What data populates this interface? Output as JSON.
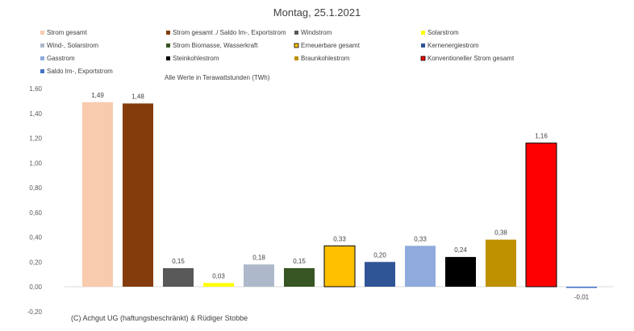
{
  "chart_data": {
    "type": "bar",
    "title": "Montag, 25.1.2021",
    "note": "Alle Werte in Terawattstunden (TWh)",
    "copyright": "(C) Achgut UG (haftungsbeschränkt) & Rüdiger Stobbe",
    "ylim": [
      -0.2,
      1.6
    ],
    "yticks": [
      "-0,20",
      "0,00",
      "0,20",
      "0,40",
      "0,60",
      "0,80",
      "1,00",
      "1,20",
      "1,40",
      "1,60"
    ],
    "ytick_values": [
      -0.2,
      0,
      0.2,
      0.4,
      0.6,
      0.8,
      1.0,
      1.2,
      1.4,
      1.6
    ],
    "grid": false,
    "legend_placement": "top",
    "series": [
      {
        "name": "Strom gesamt",
        "value": 1.49,
        "label": "1,49",
        "color": "#f8cbad",
        "border": "none"
      },
      {
        "name": "Strom gesamt ./ Saldo Im-, Exportstrom",
        "value": 1.48,
        "label": "1,48",
        "color": "#843c0c",
        "border": "none"
      },
      {
        "name": "Windstrom",
        "value": 0.15,
        "label": "0,15",
        "color": "#595959",
        "border": "none"
      },
      {
        "name": "Solarstrom",
        "value": 0.03,
        "label": "0,03",
        "color": "#ffff00",
        "border": "none"
      },
      {
        "name": "Wind-, Solarstrom",
        "value": 0.18,
        "label": "0,18",
        "color": "#adb9ca",
        "border": "none"
      },
      {
        "name": "Strom Biomasse, Wasserkraft",
        "value": 0.15,
        "label": "0,15",
        "color": "#375623",
        "border": "none"
      },
      {
        "name": "Erneuerbare gesamt",
        "value": 0.33,
        "label": "0,33",
        "color": "#ffc000",
        "border": "#000000"
      },
      {
        "name": "Kernenergiestrom",
        "value": 0.2,
        "label": "0,20",
        "color": "#2f5597",
        "border": "none"
      },
      {
        "name": "Gasstrom",
        "value": 0.33,
        "label": "0,33",
        "color": "#8faadc",
        "border": "none"
      },
      {
        "name": "Steinkohlestrom",
        "value": 0.24,
        "label": "0,24",
        "color": "#000000",
        "border": "none"
      },
      {
        "name": "Braunkohlestrom",
        "value": 0.38,
        "label": "0,38",
        "color": "#bf9000",
        "border": "none"
      },
      {
        "name": "Konventioneller Strom gesamt",
        "value": 1.16,
        "label": "1,16",
        "color": "#ff0000",
        "border": "#000000"
      },
      {
        "name": "Saldo Im-, Exportstrom",
        "value": -0.01,
        "label": "-0,01",
        "color": "#4472c4",
        "border": "none"
      }
    ]
  }
}
